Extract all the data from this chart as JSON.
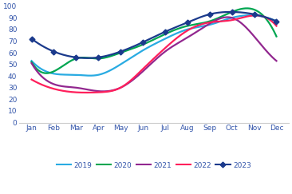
{
  "months": [
    "Jan",
    "Feb",
    "Mar",
    "Apr",
    "May",
    "Jun",
    "Jul",
    "Aug",
    "Sep",
    "Oct",
    "Nov",
    "Dec"
  ],
  "series": {
    "2019": [
      53,
      42,
      41,
      41,
      50,
      62,
      72,
      80,
      84,
      90,
      92,
      87
    ],
    "2020": [
      52,
      44,
      55,
      55,
      60,
      67,
      76,
      83,
      87,
      95,
      97,
      74
    ],
    "2021": [
      51,
      33,
      30,
      27,
      30,
      44,
      61,
      73,
      85,
      90,
      74,
      53
    ],
    "2022": [
      37,
      29,
      26,
      26,
      30,
      46,
      64,
      79,
      86,
      88,
      92,
      83
    ],
    "2023": [
      72,
      61,
      56,
      56,
      61,
      69,
      78,
      86,
      93,
      95,
      93,
      87
    ]
  },
  "colors": {
    "2019": "#29ABE2",
    "2020": "#00A651",
    "2021": "#92278F",
    "2022": "#FF1F5B",
    "2023": "#1B3A8C"
  },
  "ylim": [
    0,
    100
  ],
  "yticks": [
    0,
    10,
    20,
    30,
    40,
    50,
    60,
    70,
    80,
    90,
    100
  ],
  "background_color": "#ffffff",
  "tick_label_color": "#3355AA",
  "linewidth": 1.6
}
